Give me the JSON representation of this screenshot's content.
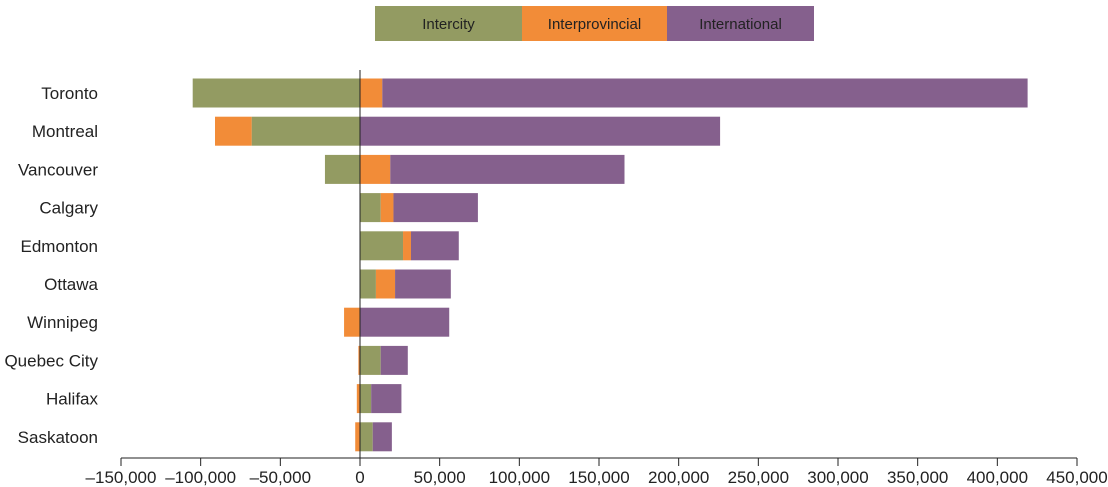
{
  "chart_data": {
    "type": "bar",
    "orientation": "horizontal",
    "stacked": "diverging",
    "categories": [
      "Toronto",
      "Montreal",
      "Vancouver",
      "Calgary",
      "Edmonton",
      "Ottawa",
      "Winnipeg",
      "Quebec City",
      "Halifax",
      "Saskatoon"
    ],
    "series": [
      {
        "name": "Intercity",
        "color": "#939B62",
        "values": [
          -105000,
          -68000,
          -22000,
          13000,
          27000,
          10000,
          0,
          13000,
          7000,
          8000
        ]
      },
      {
        "name": "Interprovincial",
        "color": "#F28C38",
        "values": [
          14000,
          -23000,
          19000,
          8000,
          5000,
          12000,
          -10000,
          -1000,
          -2000,
          -3000
        ]
      },
      {
        "name": "International",
        "color": "#85608D",
        "values": [
          405000,
          226000,
          147000,
          53000,
          30000,
          35000,
          56000,
          17000,
          19000,
          12000
        ]
      }
    ],
    "x_ticks": [
      "–150,000",
      "–100,000",
      "–50,000",
      "0",
      "50,000",
      "100,000",
      "150,000",
      "200,000",
      "250,000",
      "300,000",
      "350,000",
      "400,000",
      "450,000"
    ],
    "xlim": [
      -150000,
      450000
    ],
    "legend": {
      "position": "top-center",
      "items": [
        "Intercity",
        "Interprovincial",
        "International"
      ]
    },
    "grid": false,
    "title": "",
    "xlabel": "",
    "ylabel": ""
  }
}
